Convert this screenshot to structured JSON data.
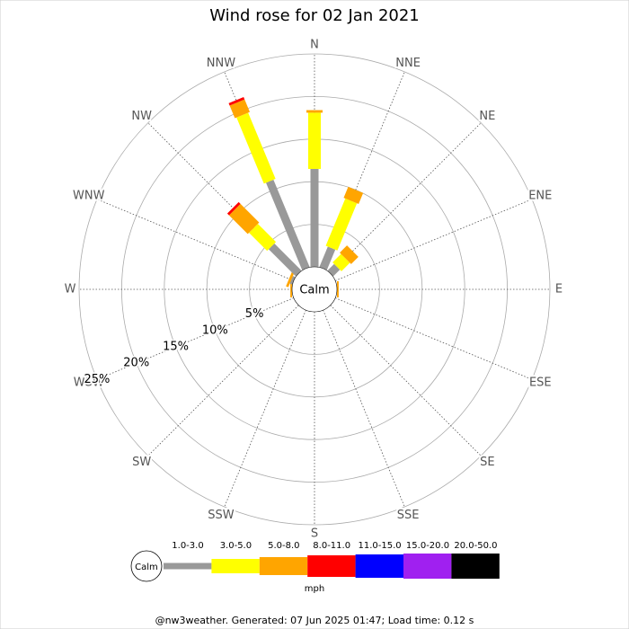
{
  "chart_data": {
    "type": "windrose",
    "title": "Wind rose for 02 Jan 2021",
    "categories": [
      "N",
      "NNE",
      "NE",
      "ENE",
      "E",
      "ESE",
      "SE",
      "SSE",
      "S",
      "SSW",
      "SW",
      "WSW",
      "W",
      "WNW",
      "NW",
      "NNW"
    ],
    "series": [
      {
        "name": "1.0-3.0",
        "color": "#999999",
        "values": [
          11.5,
          2.6,
          1.1,
          0,
          0,
          0,
          0,
          0,
          0,
          0,
          0,
          0,
          0,
          0.3,
          4.5,
          11.1
        ]
      },
      {
        "name": "3.0-5.0",
        "color": "#ffff00",
        "values": [
          6.6,
          6.0,
          1.4,
          0,
          0,
          0,
          0,
          0,
          0,
          0,
          0,
          0,
          0,
          0,
          3.0,
          8.4
        ]
      },
      {
        "name": "5.0-8.0",
        "color": "#ffa500",
        "values": [
          0.3,
          1.4,
          1.2,
          0,
          0.2,
          0,
          0,
          0,
          0,
          0,
          0,
          0,
          0.2,
          0.3,
          3.1,
          1.6
        ]
      },
      {
        "name": "8.0-11.0",
        "color": "#ff0000",
        "values": [
          0,
          0,
          0,
          0,
          0,
          0,
          0,
          0,
          0,
          0,
          0,
          0,
          0,
          0,
          0.3,
          0.3
        ]
      },
      {
        "name": "11.0-15.0",
        "color": "#0000ff",
        "values": [
          0,
          0,
          0,
          0,
          0,
          0,
          0,
          0,
          0,
          0,
          0,
          0,
          0,
          0,
          0,
          0
        ]
      },
      {
        "name": "15.0-20.0",
        "color": "#a020f0",
        "values": [
          0,
          0,
          0,
          0,
          0,
          0,
          0,
          0,
          0,
          0,
          0,
          0,
          0,
          0,
          0,
          0
        ]
      },
      {
        "name": "20.0-50.0",
        "color": "#000000",
        "values": [
          0,
          0,
          0,
          0,
          0,
          0,
          0,
          0,
          0,
          0,
          0,
          0,
          0,
          0,
          0,
          0
        ]
      }
    ],
    "rlim": [
      0,
      25
    ],
    "rticks": [
      {
        "value": 5,
        "label": "5%"
      },
      {
        "value": 10,
        "label": "10%"
      },
      {
        "value": 15,
        "label": "15%"
      },
      {
        "value": 20,
        "label": "20%"
      },
      {
        "value": 25,
        "label": "25%"
      }
    ],
    "calm_label": "Calm",
    "units": "mph",
    "footer": "@nw3weather. Generated: 07 Jun 2025 01:47; Load time: 0.12 s"
  }
}
